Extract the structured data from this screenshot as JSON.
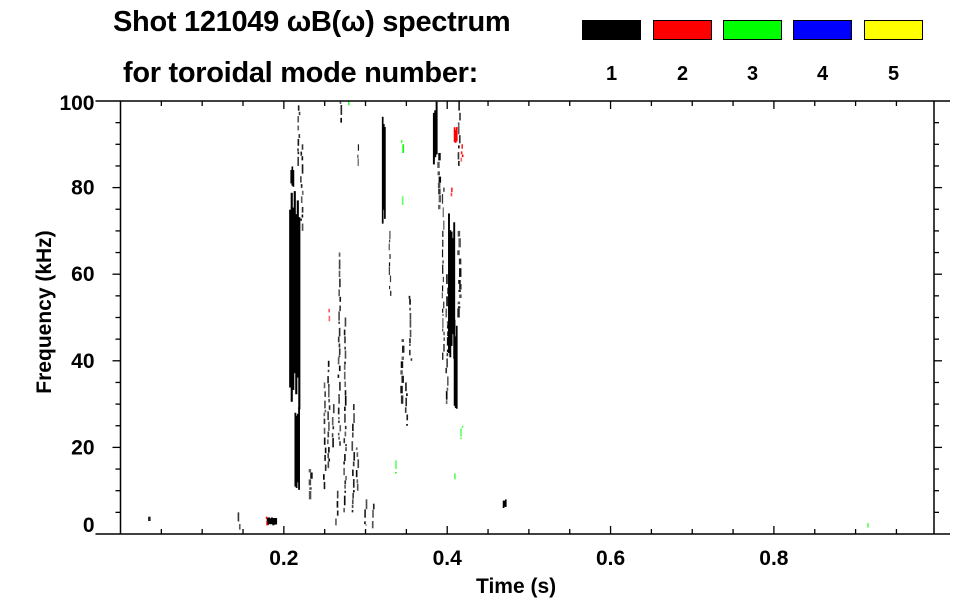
{
  "chart_data": {
    "type": "heatmap",
    "title": "Shot 121049 ωB(ω) spectrum",
    "legend_title": "for toroidal mode number:",
    "legend_placement": "top-right",
    "legend": [
      {
        "mode": "1",
        "color": "#000000"
      },
      {
        "mode": "2",
        "color": "#ff0000"
      },
      {
        "mode": "3",
        "color": "#00ff00"
      },
      {
        "mode": "4",
        "color": "#0000ff"
      },
      {
        "mode": "5",
        "color": "#ffff00"
      }
    ],
    "xlabel": "Time (s)",
    "ylabel": "Frequency (kHz)",
    "xlim": [
      0,
      0.996
    ],
    "ylim": [
      0,
      100
    ],
    "xticks": [
      "0.2",
      "0.4",
      "0.6",
      "0.8"
    ],
    "xtick_values": [
      0.2,
      0.4,
      0.6,
      0.8
    ],
    "yticks": [
      "0",
      "20",
      "40",
      "60",
      "80",
      "100"
    ],
    "ytick_values": [
      0,
      20,
      40,
      60,
      80,
      100
    ],
    "features_columns": [
      "time_s",
      "freq_low_khz",
      "freq_high_khz",
      "time_width_s",
      "mode"
    ],
    "features": [
      [
        0.213,
        28,
        80,
        0.013,
        1
      ],
      [
        0.216,
        10,
        30,
        0.006,
        1
      ],
      [
        0.21,
        80,
        85,
        0.004,
        1
      ],
      [
        0.218,
        85,
        99,
        0.002,
        1
      ],
      [
        0.222,
        70,
        90,
        0.002,
        1
      ],
      [
        0.233,
        8,
        15,
        0.003,
        1
      ],
      [
        0.25,
        10,
        35,
        0.002,
        1
      ],
      [
        0.255,
        15,
        40,
        0.002,
        1
      ],
      [
        0.26,
        20,
        30,
        0.002,
        1
      ],
      [
        0.268,
        20,
        65,
        0.002,
        1
      ],
      [
        0.275,
        5,
        50,
        0.002,
        1
      ],
      [
        0.285,
        5,
        30,
        0.002,
        1
      ],
      [
        0.29,
        10,
        20,
        0.002,
        1
      ],
      [
        0.265,
        2,
        10,
        0.002,
        1
      ],
      [
        0.3,
        2,
        8,
        0.002,
        1
      ],
      [
        0.31,
        1,
        7,
        0.002,
        1
      ],
      [
        0.322,
        70,
        97,
        0.004,
        1
      ],
      [
        0.33,
        55,
        70,
        0.001,
        1
      ],
      [
        0.345,
        30,
        45,
        0.003,
        1
      ],
      [
        0.35,
        25,
        35,
        0.002,
        1
      ],
      [
        0.355,
        40,
        55,
        0.002,
        1
      ],
      [
        0.385,
        85,
        100,
        0.005,
        1
      ],
      [
        0.39,
        75,
        88,
        0.003,
        1
      ],
      [
        0.405,
        40,
        75,
        0.008,
        1
      ],
      [
        0.41,
        25,
        50,
        0.004,
        1
      ],
      [
        0.415,
        50,
        70,
        0.003,
        1
      ],
      [
        0.4,
        30,
        60,
        0.002,
        1
      ],
      [
        0.395,
        40,
        80,
        0.001,
        1
      ],
      [
        0.415,
        85,
        100,
        0.002,
        1
      ],
      [
        0.185,
        2,
        4,
        0.012,
        1
      ],
      [
        0.145,
        1,
        5,
        0.002,
        1
      ],
      [
        0.035,
        3,
        4,
        0.003,
        1
      ],
      [
        0.47,
        6,
        8,
        0.004,
        1
      ],
      [
        0.27,
        95,
        100,
        0.002,
        1
      ],
      [
        0.29,
        85,
        90,
        0.001,
        1
      ],
      [
        0.41,
        90,
        94,
        0.004,
        2
      ],
      [
        0.405,
        78,
        80,
        0.002,
        2
      ],
      [
        0.256,
        49,
        52,
        0.002,
        2
      ],
      [
        0.18,
        2,
        4,
        0.002,
        2
      ],
      [
        0.418,
        86,
        90,
        0.002,
        2
      ],
      [
        0.345,
        88,
        91,
        0.002,
        3
      ],
      [
        0.345,
        76,
        78,
        0.002,
        3
      ],
      [
        0.338,
        14,
        17,
        0.002,
        3
      ],
      [
        0.418,
        22,
        25,
        0.002,
        3
      ],
      [
        0.41,
        12,
        14,
        0.002,
        3
      ],
      [
        0.915,
        1.5,
        2.5,
        0.001,
        3
      ],
      [
        0.28,
        99,
        100,
        0.002,
        3
      ]
    ]
  }
}
